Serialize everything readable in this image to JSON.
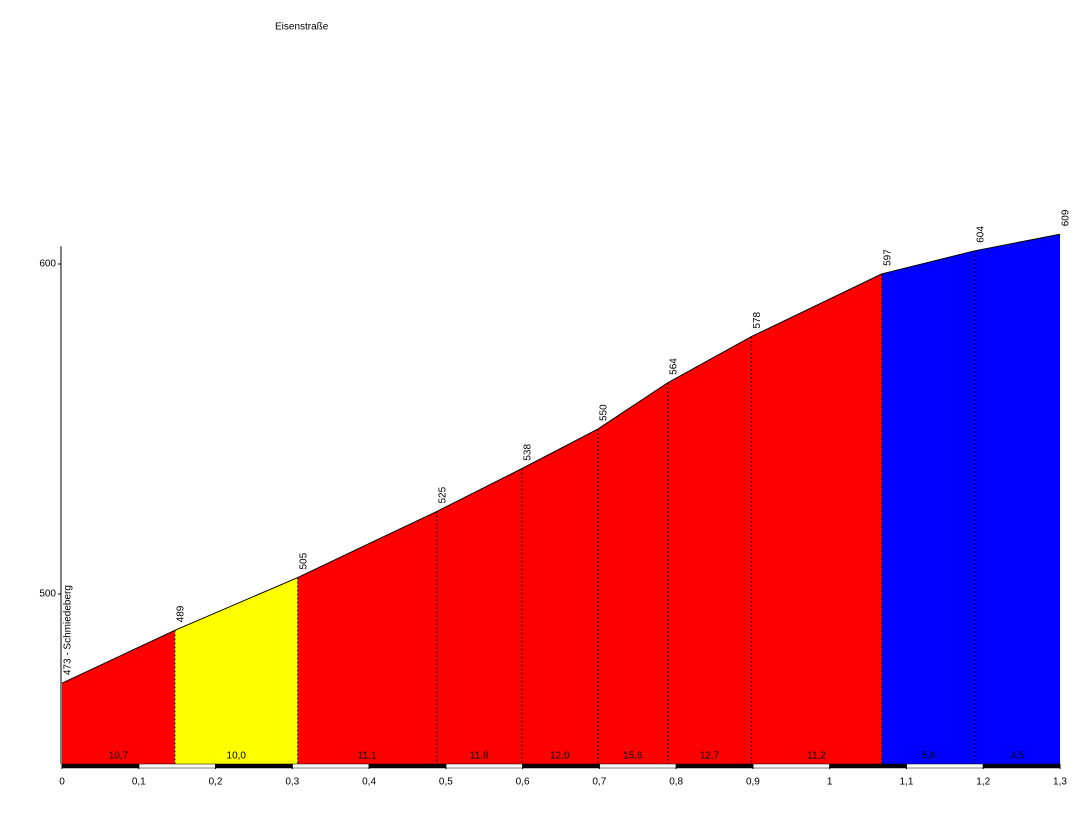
{
  "chart_data": {
    "type": "profile",
    "title": "Eisenstraße",
    "x": [
      0,
      0.147,
      0.307,
      0.488,
      0.599,
      0.698,
      0.789,
      0.898,
      1.068,
      1.189,
      1.3
    ],
    "values": [
      473,
      489,
      505,
      525,
      538,
      550,
      564,
      578,
      597,
      604,
      609
    ],
    "value_labels": [
      "473 - Schmiedeberg",
      "489",
      "505",
      "525",
      "538",
      "550",
      "564",
      "578",
      "597",
      "604",
      "609"
    ],
    "segments": {
      "values": [
        10.7,
        10.0,
        11.1,
        11.8,
        12.0,
        15.6,
        12.7,
        11.2,
        5.8,
        4.5
      ],
      "value_labels": [
        "10,7",
        "10,0",
        "11,1",
        "11,8",
        "12,0",
        "15,6",
        "12,7",
        "11,2",
        "5,8",
        "4,5"
      ],
      "colors": [
        "#ff0000",
        "#ffff00",
        "#ff0000",
        "#ff0000",
        "#ff0000",
        "#ff0000",
        "#ff0000",
        "#ff0000",
        "#0000ff",
        "#0000ff"
      ]
    },
    "xlim": [
      0,
      1.3
    ],
    "xticks": [
      0,
      {
        "value": 0.1,
        "label": "0,1"
      },
      {
        "value": 0.2,
        "label": "0,2"
      },
      {
        "value": 0.3,
        "label": "0,3"
      },
      {
        "value": 0.4,
        "label": "0,4"
      },
      {
        "value": 0.5,
        "label": "0,5"
      },
      {
        "value": 0.6,
        "label": "0,6"
      },
      {
        "value": 0.7,
        "label": "0,7"
      },
      {
        "value": 0.8,
        "label": "0,8"
      },
      {
        "value": 0.9,
        "label": "0,9"
      },
      1,
      {
        "value": 1.1,
        "label": "1,1"
      },
      {
        "value": 1.2,
        "label": "1,2"
      },
      {
        "value": 1.3,
        "label": "1,3"
      }
    ],
    "ylim": [
      448.5,
      609
    ],
    "yticks": [
      500,
      600
    ]
  }
}
